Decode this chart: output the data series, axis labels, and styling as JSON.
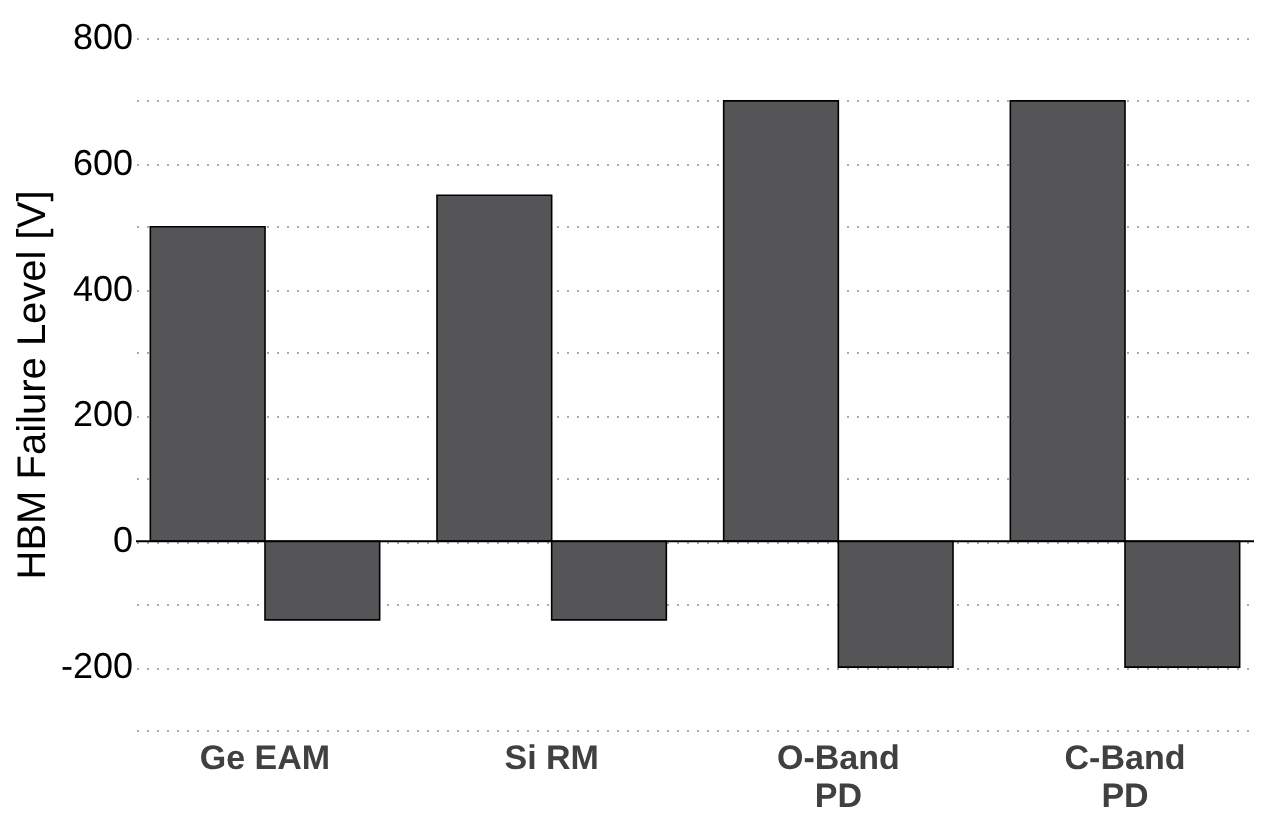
{
  "chart_data": {
    "type": "bar",
    "ylabel": "HBM Failure Level [V]",
    "categories": [
      "Ge EAM",
      "Si RM",
      "O-Band\nPD",
      "C-Band\nPD"
    ],
    "series": [
      {
        "color": "#555557",
        "values": [
          500,
          550,
          700,
          700
        ]
      },
      {
        "color": "#555557",
        "values": [
          -125,
          -125,
          -200,
          -200
        ]
      }
    ],
    "ylim": [
      -300,
      800
    ],
    "yticks": [
      {
        "value": -300,
        "label": null
      },
      -200,
      {
        "value": -100,
        "label": null
      },
      0,
      {
        "value": 100,
        "label": null
      },
      200,
      {
        "value": 300,
        "label": null
      },
      400,
      {
        "value": 500,
        "label": null
      },
      600,
      {
        "value": 700,
        "label": null
      },
      800
    ],
    "grid": "y",
    "ref_lines": [
      {
        "axis": "y",
        "value": 0,
        "color": "#000000"
      }
    ]
  }
}
